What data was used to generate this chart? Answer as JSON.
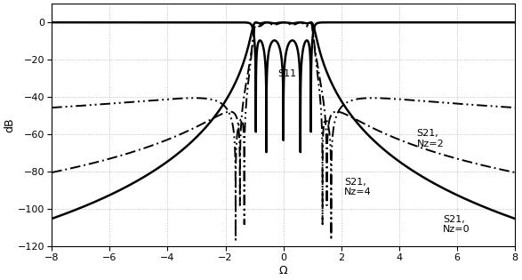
{
  "title": "",
  "xlabel": "Ω",
  "ylabel": "dB",
  "xlim": [
    -8,
    8
  ],
  "ylim": [
    -120,
    10
  ],
  "yticks": [
    0,
    -20,
    -40,
    -60,
    -80,
    -100,
    -120
  ],
  "xticks": [
    -8,
    -6,
    -4,
    -2,
    0,
    2,
    4,
    6,
    8
  ],
  "grid_color": "#888888",
  "bg_color": "#ffffff",
  "label_S11": "S11",
  "label_S21_Nz0": "S21,\nNz=0",
  "label_S21_Nz2": "S21,\nNz=2",
  "label_S21_Nz4": "S21,\nNz=4",
  "figsize": [
    5.87,
    3.15
  ],
  "dpi": 100
}
